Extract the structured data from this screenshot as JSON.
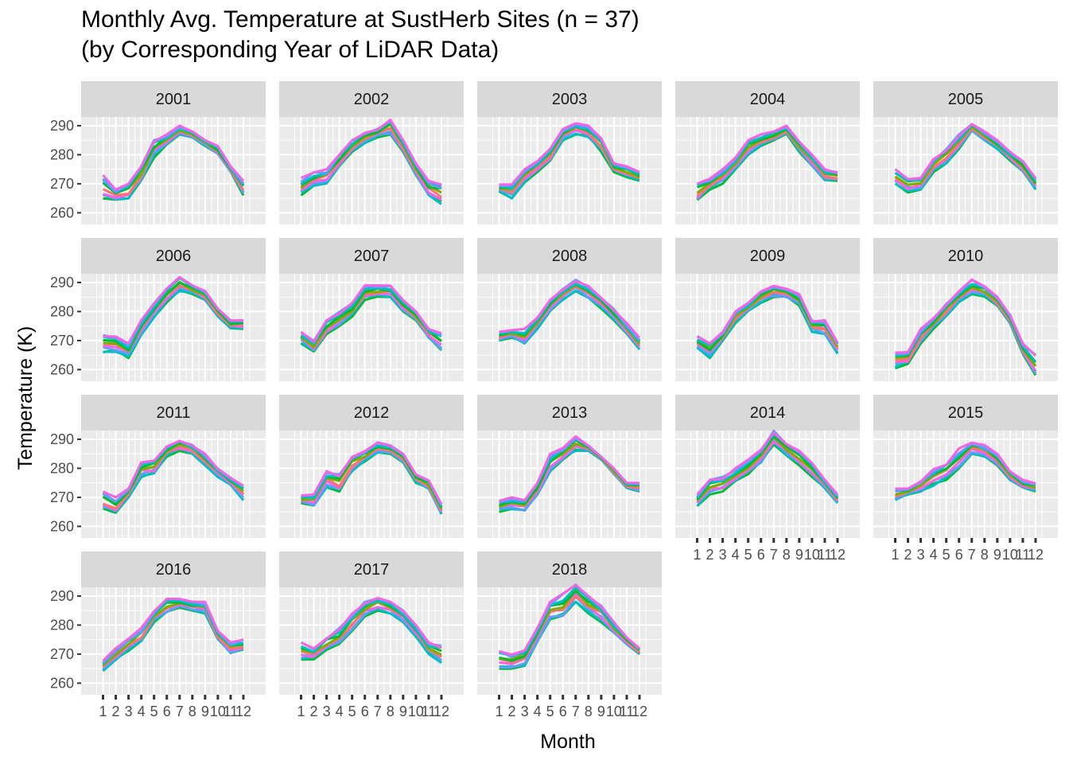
{
  "chart_data": {
    "type": "line",
    "title": "Monthly Avg. Temperature at SustHerb Sites (n = 37)",
    "subtitle": "(by Corresponding Year of LiDAR Data)",
    "xlabel": "Month",
    "ylabel": "Temperature (K)",
    "x": [
      "1",
      "2",
      "3",
      "4",
      "5",
      "6",
      "7",
      "8",
      "9",
      "10",
      "11",
      "12"
    ],
    "yticks": [
      "260",
      "270",
      "280",
      "290"
    ],
    "ylim": [
      256,
      293
    ],
    "grid": true,
    "legend": "none",
    "colors": [
      "#00BA38",
      "#00BFC4",
      "#619CFF",
      "#F564E3",
      "#F8766D",
      "#7CAE00"
    ],
    "panels": [
      {
        "label": "2001",
        "lo": [
          265,
          264,
          265,
          271,
          279,
          283,
          287,
          286,
          283,
          280,
          274,
          266
        ],
        "hi": [
          273,
          268,
          270,
          276,
          285,
          287,
          290,
          288,
          285,
          283,
          276,
          271
        ]
      },
      {
        "label": "2002",
        "lo": [
          266,
          269,
          270,
          276,
          281,
          284,
          286,
          287,
          281,
          273,
          266,
          263
        ],
        "hi": [
          272,
          274,
          275,
          280,
          285,
          288,
          289,
          292,
          285,
          277,
          271,
          270
        ]
      },
      {
        "label": "2003",
        "lo": [
          267,
          265,
          270,
          274,
          278,
          285,
          287,
          286,
          281,
          274,
          272,
          271
        ],
        "hi": [
          270,
          270,
          275,
          278,
          282,
          289,
          291,
          290,
          286,
          277,
          276,
          274
        ]
      },
      {
        "label": "2004",
        "lo": [
          264,
          268,
          270,
          275,
          280,
          283,
          285,
          287,
          281,
          276,
          271,
          271
        ],
        "hi": [
          270,
          272,
          275,
          279,
          285,
          287,
          288,
          290,
          285,
          280,
          275,
          274
        ]
      },
      {
        "label": "2005",
        "lo": [
          270,
          267,
          268,
          274,
          277,
          282,
          288,
          285,
          282,
          278,
          274,
          268
        ],
        "hi": [
          275,
          272,
          272,
          279,
          282,
          287,
          291,
          288,
          285,
          281,
          278,
          272
        ]
      },
      {
        "label": "2006",
        "lo": [
          266,
          266,
          264,
          272,
          278,
          283,
          287,
          286,
          284,
          278,
          274,
          274
        ],
        "hi": [
          272,
          272,
          269,
          277,
          283,
          288,
          292,
          289,
          287,
          281,
          277,
          277
        ]
      },
      {
        "label": "2007",
        "lo": [
          269,
          266,
          272,
          275,
          278,
          284,
          285,
          285,
          280,
          277,
          271,
          266
        ],
        "hi": [
          273,
          270,
          277,
          280,
          283,
          289,
          289,
          289,
          284,
          280,
          274,
          273
        ]
      },
      {
        "label": "2008",
        "lo": [
          270,
          271,
          269,
          274,
          280,
          284,
          287,
          284,
          281,
          277,
          272,
          267
        ],
        "hi": [
          273,
          274,
          274,
          278,
          284,
          288,
          291,
          289,
          285,
          281,
          276,
          271
        ]
      },
      {
        "label": "2009",
        "lo": [
          267,
          264,
          270,
          276,
          280,
          283,
          285,
          285,
          282,
          273,
          272,
          265
        ],
        "hi": [
          272,
          269,
          273,
          280,
          283,
          287,
          289,
          288,
          286,
          277,
          277,
          270
        ]
      },
      {
        "label": "2010",
        "lo": [
          260,
          262,
          269,
          274,
          278,
          283,
          286,
          285,
          282,
          276,
          265,
          258
        ],
        "hi": [
          266,
          266,
          274,
          278,
          283,
          287,
          291,
          289,
          285,
          279,
          269,
          265
        ]
      },
      {
        "label": "2011",
        "lo": [
          266,
          264,
          270,
          277,
          278,
          284,
          286,
          285,
          281,
          277,
          274,
          269
        ],
        "hi": [
          272,
          270,
          273,
          282,
          283,
          288,
          290,
          288,
          285,
          280,
          277,
          274
        ]
      },
      {
        "label": "2012",
        "lo": [
          268,
          267,
          273,
          272,
          279,
          282,
          285,
          285,
          282,
          275,
          273,
          264
        ],
        "hi": [
          271,
          271,
          279,
          278,
          284,
          286,
          289,
          288,
          285,
          278,
          276,
          268
        ]
      },
      {
        "label": "2013",
        "lo": [
          265,
          266,
          265,
          271,
          279,
          283,
          286,
          286,
          283,
          278,
          273,
          272
        ],
        "hi": [
          269,
          270,
          269,
          275,
          285,
          287,
          291,
          288,
          284,
          280,
          275,
          275
        ]
      },
      {
        "label": "2014",
        "lo": [
          267,
          271,
          272,
          275,
          278,
          282,
          288,
          284,
          281,
          277,
          273,
          268
        ],
        "hi": [
          271,
          276,
          277,
          280,
          283,
          287,
          293,
          289,
          286,
          282,
          276,
          271
        ]
      },
      {
        "label": "2015",
        "lo": [
          269,
          271,
          272,
          274,
          276,
          280,
          285,
          284,
          281,
          276,
          273,
          272
        ],
        "hi": [
          273,
          273,
          276,
          280,
          282,
          287,
          289,
          288,
          285,
          279,
          276,
          275
        ]
      },
      {
        "label": "2016",
        "lo": [
          264,
          268,
          271,
          274,
          281,
          284,
          286,
          285,
          284,
          275,
          270,
          271
        ],
        "hi": [
          268,
          272,
          276,
          279,
          285,
          289,
          289,
          288,
          288,
          278,
          274,
          275
        ]
      },
      {
        "label": "2017",
        "lo": [
          268,
          268,
          271,
          273,
          278,
          283,
          285,
          284,
          281,
          276,
          270,
          267
        ],
        "hi": [
          274,
          272,
          276,
          279,
          284,
          288,
          290,
          288,
          285,
          280,
          274,
          273
        ]
      },
      {
        "label": "2018",
        "lo": [
          265,
          265,
          266,
          274,
          282,
          282,
          288,
          284,
          281,
          277,
          273,
          270
        ],
        "hi": [
          271,
          270,
          272,
          279,
          288,
          291,
          294,
          290,
          287,
          281,
          276,
          272
        ]
      }
    ]
  }
}
